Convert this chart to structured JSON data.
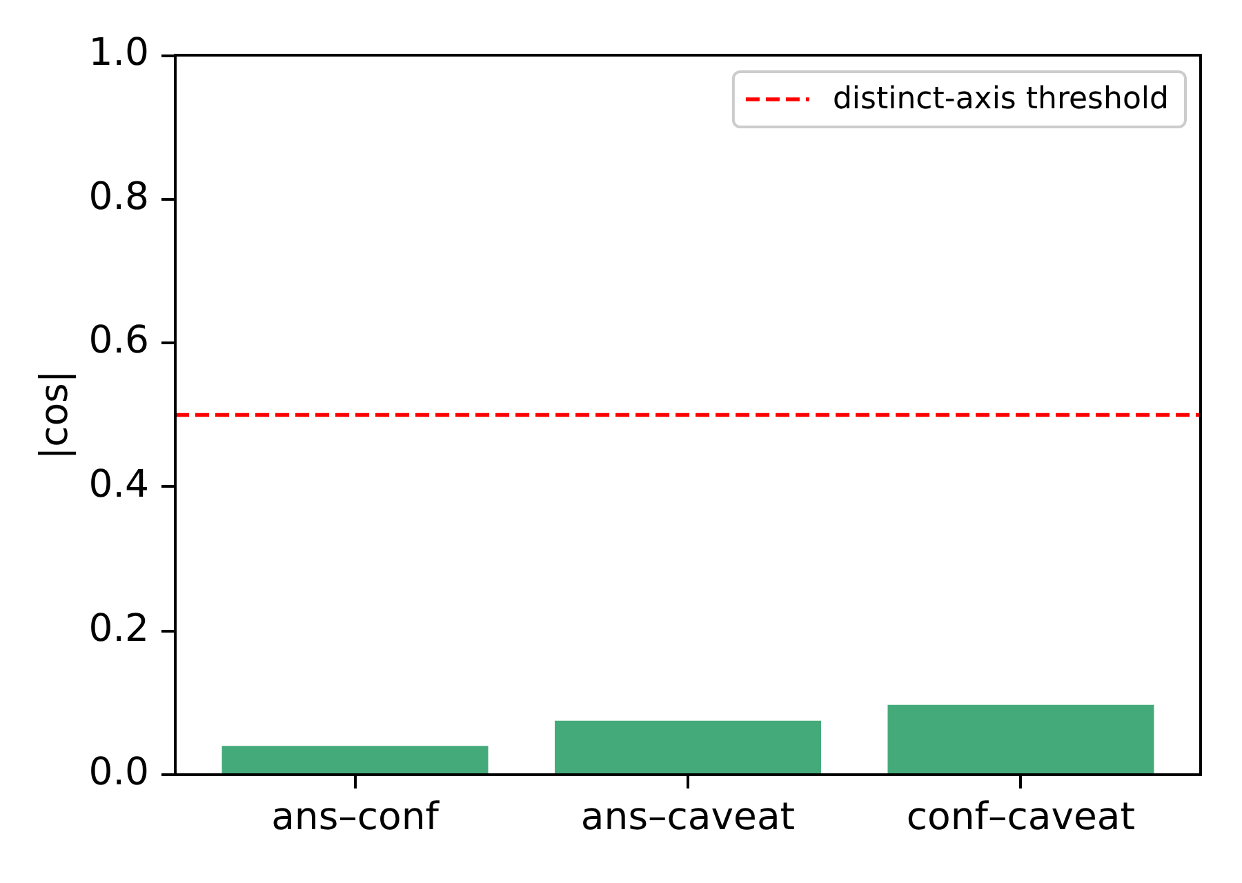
{
  "chart_data": {
    "type": "bar",
    "ylabel": "|cos|",
    "categories": [
      "ans–conf",
      "ans–caveat",
      "conf–caveat"
    ],
    "values": [
      0.04,
      0.075,
      0.097
    ],
    "color": "#45aa7a",
    "ylim": [
      0,
      1
    ],
    "yticks": [
      {
        "value": 0,
        "label": "0.0"
      },
      0.2,
      0.4,
      0.6,
      0.8,
      {
        "value": 1,
        "label": "1.0"
      }
    ],
    "legend": "top right",
    "ref_lines": [
      {
        "axis": "y",
        "value": 0.5,
        "label": "distinct-axis threshold",
        "color": "#ff0000",
        "line_style": "dashed"
      }
    ]
  }
}
